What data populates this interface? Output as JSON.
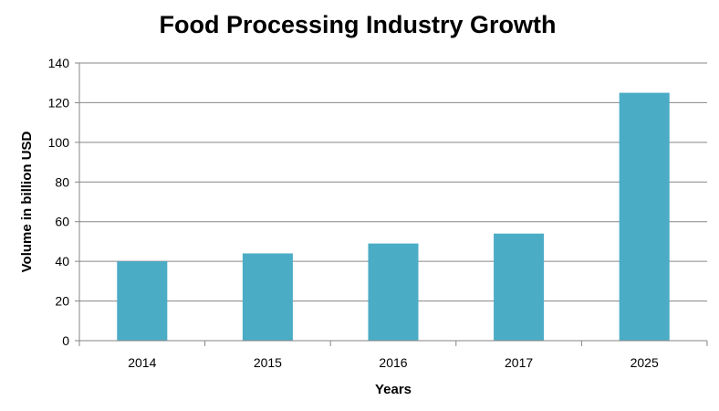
{
  "chart_data": {
    "type": "bar",
    "title": "Food Processing Industry Growth",
    "xlabel": "Years",
    "ylabel": "Volume in billion USD",
    "categories": [
      "2014",
      "2015",
      "2016",
      "2017",
      "2025"
    ],
    "values": [
      40,
      44,
      49,
      54,
      125
    ],
    "ylim": [
      0,
      140
    ],
    "yticks": [
      "0",
      "20",
      "40",
      "60",
      "80",
      "100",
      "120",
      "140"
    ],
    "grid": true,
    "legend": "none",
    "bar_color": "#4BACC6",
    "gridline_color": "#868686"
  }
}
